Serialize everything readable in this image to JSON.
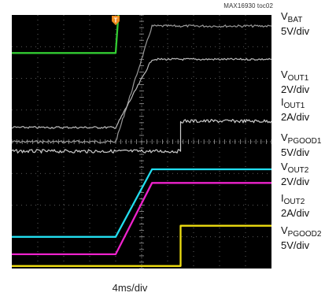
{
  "header": {
    "figure_id": "MAX16930 toc02"
  },
  "footer": {
    "timebase": "4ms/div"
  },
  "channels": [
    {
      "id": "vbat",
      "main": "V",
      "sub": "BAT",
      "scale": "5V/div",
      "color": "#33cc33"
    },
    {
      "id": "vout1",
      "main": "V",
      "sub": "OUT1",
      "scale": "2V/div",
      "color": "#999999"
    },
    {
      "id": "iout1",
      "main": "I",
      "sub": "OUT1",
      "scale": "2A/div",
      "color": "#bbbbbb"
    },
    {
      "id": "vpgood1",
      "main": "V",
      "sub": "PGOOD1",
      "scale": "5V/div",
      "color": "#cccccc"
    },
    {
      "id": "vout2",
      "main": "V",
      "sub": "OUT2",
      "scale": "2V/div",
      "color": "#22ddee"
    },
    {
      "id": "iout2",
      "main": "I",
      "sub": "OUT2",
      "scale": "2A/div",
      "color": "#ee22cc"
    },
    {
      "id": "vpgood2",
      "main": "V",
      "sub": "PGOOD2",
      "scale": "5V/div",
      "color": "#eedd11"
    }
  ],
  "chart_data": {
    "type": "line",
    "grid": true,
    "x_divisions": 10,
    "y_divisions": 8,
    "trigger_marker": "T",
    "series": [
      {
        "name": "VBAT",
        "x": [
          0,
          4.0,
          4.2,
          10
        ],
        "y": [
          6.8,
          6.8,
          9.1,
          9.1
        ]
      },
      {
        "name": "VOUT1",
        "x": [
          0,
          4.0,
          5.4,
          10
        ],
        "y": [
          4.0,
          4.0,
          7.65,
          7.65
        ]
      },
      {
        "name": "IOUT1",
        "x": [
          0,
          4.0,
          5.4,
          10
        ],
        "y": [
          4.45,
          4.45,
          6.6,
          6.6
        ]
      },
      {
        "name": "VPGOOD1",
        "x": [
          0,
          6.5,
          6.5,
          10
        ],
        "y": [
          3.7,
          3.7,
          4.65,
          4.65
        ]
      },
      {
        "name": "VOUT2",
        "x": [
          0,
          4.0,
          5.4,
          10
        ],
        "y": [
          1.0,
          1.0,
          3.13,
          3.13
        ]
      },
      {
        "name": "IOUT2",
        "x": [
          0,
          4.0,
          5.4,
          10
        ],
        "y": [
          0.45,
          0.45,
          2.7,
          2.7
        ]
      },
      {
        "name": "VPGOOD2",
        "x": [
          0,
          6.5,
          6.5,
          10
        ],
        "y": [
          0.08,
          0.08,
          1.35,
          1.35
        ]
      }
    ]
  }
}
